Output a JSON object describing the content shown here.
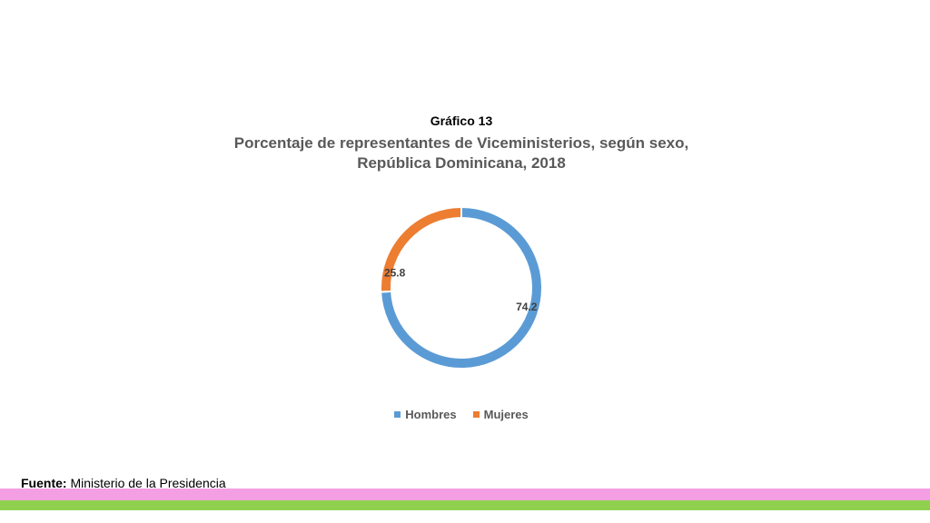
{
  "header": {
    "label": "Gráfico 13",
    "title_line1": "Porcentaje de representantes de Viceministerios, según sexo,",
    "title_line2": "República Dominicana, 2018"
  },
  "chart_data": {
    "type": "pie",
    "style": "donut",
    "title": "Porcentaje de representantes de Viceministerios, según sexo, República Dominicana, 2018",
    "categories": [
      "Hombres",
      "Mujeres"
    ],
    "values": [
      74.2,
      25.8
    ],
    "value_labels": [
      "74.2",
      "25.8"
    ],
    "colors": [
      "#5b9bd5",
      "#ed7d31"
    ],
    "legend_position": "bottom",
    "start": "top",
    "direction": "clockwise"
  },
  "legend": {
    "items": [
      {
        "label": "Hombres",
        "color": "#5b9bd5"
      },
      {
        "label": "Mujeres",
        "color": "#ed7d31"
      }
    ]
  },
  "footer": {
    "source_label": "Fuente:",
    "source_text": " Ministerio de la Presidencia"
  },
  "colors": {
    "band_pink": "#f49fe4",
    "band_green": "#8fd14f",
    "title_text": "#595959"
  }
}
